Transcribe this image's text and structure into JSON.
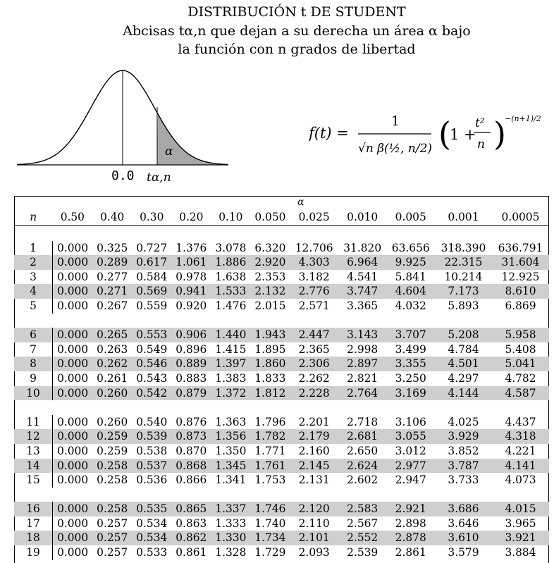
{
  "header": {
    "title": "DISTRIBUCIÓN t DE STUDENT",
    "line2": "Abcisas tα,n que dejan a su derecha un área α bajo",
    "line3": "la función con n grados de libertad"
  },
  "figure": {
    "zero_label": "0.0",
    "t_label": "tα,n",
    "alpha_label": "α"
  },
  "formula": {
    "text": "f(t) = 1 / (√n β(1/2, n/2)) · (1 + t²/n)^(−(n+1)/2)"
  },
  "table": {
    "alpha_header": "α",
    "n_header": "n",
    "alphas": [
      "0.50",
      "0.40",
      "0.30",
      "0.20",
      "0.10",
      "0.050",
      "0.025",
      "0.010",
      "0.005",
      "0.001",
      "0.0005"
    ],
    "rows": [
      [
        "1",
        "0.000",
        "0.325",
        "0.727",
        "1.376",
        "3.078",
        "6.320",
        "12.706",
        "31.820",
        "63.656",
        "318.390",
        "636.791"
      ],
      [
        "2",
        "0.000",
        "0.289",
        "0.617",
        "1.061",
        "1.886",
        "2.920",
        "4.303",
        "6.964",
        "9.925",
        "22.315",
        "31.604"
      ],
      [
        "3",
        "0.000",
        "0.277",
        "0.584",
        "0.978",
        "1.638",
        "2.353",
        "3.182",
        "4.541",
        "5.841",
        "10.214",
        "12.925"
      ],
      [
        "4",
        "0.000",
        "0.271",
        "0.569",
        "0.941",
        "1.533",
        "2.132",
        "2.776",
        "3.747",
        "4.604",
        "7.173",
        "8.610"
      ],
      [
        "5",
        "0.000",
        "0.267",
        "0.559",
        "0.920",
        "1.476",
        "2.015",
        "2.571",
        "3.365",
        "4.032",
        "5.893",
        "6.869"
      ],
      [
        "6",
        "0.000",
        "0.265",
        "0.553",
        "0.906",
        "1.440",
        "1.943",
        "2.447",
        "3.143",
        "3.707",
        "5.208",
        "5.958"
      ],
      [
        "7",
        "0.000",
        "0.263",
        "0.549",
        "0.896",
        "1.415",
        "1.895",
        "2.365",
        "2.998",
        "3.499",
        "4.784",
        "5.408"
      ],
      [
        "8",
        "0.000",
        "0.262",
        "0.546",
        "0.889",
        "1.397",
        "1.860",
        "2.306",
        "2.897",
        "3.355",
        "4.501",
        "5.041"
      ],
      [
        "9",
        "0.000",
        "0.261",
        "0.543",
        "0.883",
        "1.383",
        "1.833",
        "2.262",
        "2.821",
        "3.250",
        "4.297",
        "4.782"
      ],
      [
        "10",
        "0.000",
        "0.260",
        "0.542",
        "0.879",
        "1.372",
        "1.812",
        "2.228",
        "2.764",
        "3.169",
        "4.144",
        "4.587"
      ],
      [
        "11",
        "0.000",
        "0.260",
        "0.540",
        "0.876",
        "1.363",
        "1.796",
        "2.201",
        "2.718",
        "3.106",
        "4.025",
        "4.437"
      ],
      [
        "12",
        "0.000",
        "0.259",
        "0.539",
        "0.873",
        "1.356",
        "1.782",
        "2.179",
        "2.681",
        "3.055",
        "3.929",
        "4.318"
      ],
      [
        "13",
        "0.000",
        "0.259",
        "0.538",
        "0.870",
        "1.350",
        "1.771",
        "2.160",
        "2.650",
        "3.012",
        "3.852",
        "4.221"
      ],
      [
        "14",
        "0.000",
        "0.258",
        "0.537",
        "0.868",
        "1.345",
        "1.761",
        "2.145",
        "2.624",
        "2.977",
        "3.787",
        "4.141"
      ],
      [
        "15",
        "0.000",
        "0.258",
        "0.536",
        "0.866",
        "1.341",
        "1.753",
        "2.131",
        "2.602",
        "2.947",
        "3.733",
        "4.073"
      ],
      [
        "16",
        "0.000",
        "0.258",
        "0.535",
        "0.865",
        "1.337",
        "1.746",
        "2.120",
        "2.583",
        "2.921",
        "3.686",
        "4.015"
      ],
      [
        "17",
        "0.000",
        "0.257",
        "0.534",
        "0.863",
        "1.333",
        "1.740",
        "2.110",
        "2.567",
        "2.898",
        "3.646",
        "3.965"
      ],
      [
        "18",
        "0.000",
        "0.257",
        "0.534",
        "0.862",
        "1.330",
        "1.734",
        "2.101",
        "2.552",
        "2.878",
        "3.610",
        "3.921"
      ],
      [
        "19",
        "0.000",
        "0.257",
        "0.533",
        "0.861",
        "1.328",
        "1.729",
        "2.093",
        "2.539",
        "2.861",
        "3.579",
        "3.884"
      ]
    ],
    "shaded_rows": [
      "2",
      "4",
      "6",
      "8",
      "10",
      "12",
      "14",
      "16",
      "18"
    ]
  },
  "colors": {
    "shade": "#cfcfcf",
    "curve_fill": "#a8a8a8"
  }
}
